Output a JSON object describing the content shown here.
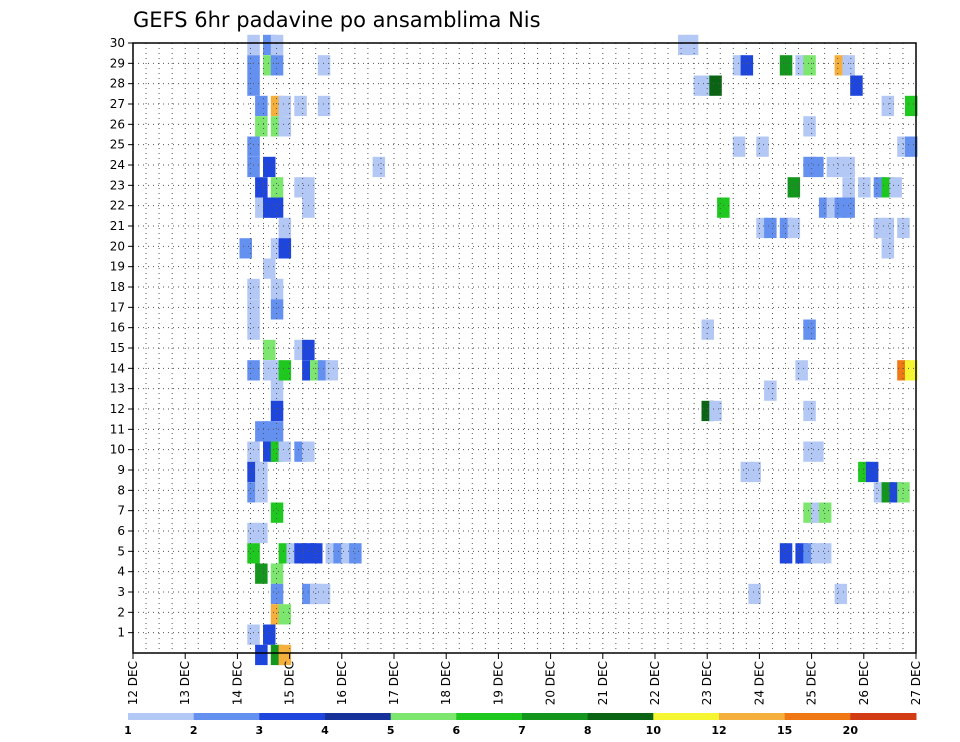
{
  "chart_data": {
    "type": "heatmap",
    "title": "GEFS 6hr padavine po ansamblima Nis",
    "xlabel": "",
    "ylabel": "",
    "x_ticks": [
      "12 DEC",
      "13 DEC",
      "14 DEC",
      "15 DEC",
      "16 DEC",
      "17 DEC",
      "18 DEC",
      "19 DEC",
      "20 DEC",
      "21 DEC",
      "22 DEC",
      "23 DEC",
      "24 DEC",
      "25 DEC",
      "26 DEC",
      "27 DEC"
    ],
    "y_ticks": [
      "1",
      "2",
      "3",
      "4",
      "5",
      "6",
      "7",
      "8",
      "9",
      "10",
      "11",
      "12",
      "13",
      "14",
      "15",
      "16",
      "17",
      "18",
      "19",
      "20",
      "21",
      "22",
      "23",
      "24",
      "25",
      "26",
      "27",
      "28",
      "29",
      "30"
    ],
    "xlim": [
      "12 DEC 00Z",
      "27 DEC 00Z"
    ],
    "ylim": [
      0,
      30
    ],
    "x_step_hours": 6,
    "grid": true,
    "colorbar": {
      "position": "bottom",
      "levels": [
        "1",
        "2",
        "3",
        "4",
        "5",
        "6",
        "7",
        "8",
        "10",
        "12",
        "15",
        "20"
      ],
      "colors": [
        "#b4c8f5",
        "#6491f0",
        "#1e46dc",
        "#16329a",
        "#7de66e",
        "#1ec81e",
        "#14961e",
        "#0a6414",
        "#f5f532",
        "#f5af3c",
        "#f07814",
        "#d23c14",
        "#a01e0a",
        "#6e0a0a"
      ]
    },
    "series_note": "cells: [member_row, time_step_index_from_12DEC00Z, precipitation_level_index]",
    "cells": [
      [
        30,
        14,
        0
      ],
      [
        30,
        16,
        1
      ],
      [
        30,
        17,
        0
      ],
      [
        30,
        69,
        0
      ],
      [
        30,
        70,
        0
      ],
      [
        29,
        14,
        1
      ],
      [
        29,
        16,
        4
      ],
      [
        29,
        17,
        1
      ],
      [
        29,
        23,
        0
      ],
      [
        29,
        76,
        0
      ],
      [
        29,
        77,
        2
      ],
      [
        29,
        82,
        6
      ],
      [
        29,
        84,
        0
      ],
      [
        29,
        85,
        4
      ],
      [
        29,
        89,
        9
      ],
      [
        29,
        90,
        0
      ],
      [
        28,
        14,
        1
      ],
      [
        28,
        71,
        0
      ],
      [
        28,
        72,
        0
      ],
      [
        28,
        73,
        7
      ],
      [
        28,
        91,
        2
      ],
      [
        27,
        15,
        1
      ],
      [
        27,
        17,
        9
      ],
      [
        27,
        18,
        0
      ],
      [
        27,
        20,
        0
      ],
      [
        27,
        23,
        0
      ],
      [
        27,
        95,
        0
      ],
      [
        27,
        98,
        5
      ],
      [
        26,
        15,
        4
      ],
      [
        26,
        17,
        4
      ],
      [
        26,
        18,
        0
      ],
      [
        26,
        85,
        0
      ],
      [
        25,
        14,
        1
      ],
      [
        25,
        76,
        0
      ],
      [
        25,
        79,
        0
      ],
      [
        25,
        97,
        0
      ],
      [
        25,
        98,
        1
      ],
      [
        24,
        14,
        1
      ],
      [
        24,
        16,
        2
      ],
      [
        24,
        30,
        0
      ],
      [
        24,
        85,
        1
      ],
      [
        24,
        86,
        1
      ],
      [
        24,
        88,
        0
      ],
      [
        24,
        89,
        0
      ],
      [
        24,
        90,
        0
      ],
      [
        23,
        15,
        2
      ],
      [
        23,
        17,
        4
      ],
      [
        23,
        20,
        0
      ],
      [
        23,
        21,
        0
      ],
      [
        23,
        83,
        6
      ],
      [
        23,
        90,
        0
      ],
      [
        23,
        92,
        0
      ],
      [
        23,
        94,
        1
      ],
      [
        23,
        95,
        5
      ],
      [
        23,
        96,
        0
      ],
      [
        22,
        15,
        0
      ],
      [
        22,
        16,
        2
      ],
      [
        22,
        17,
        2
      ],
      [
        22,
        21,
        0
      ],
      [
        22,
        74,
        5
      ],
      [
        22,
        87,
        1
      ],
      [
        22,
        88,
        0
      ],
      [
        22,
        89,
        1
      ],
      [
        22,
        90,
        1
      ],
      [
        21,
        18,
        0
      ],
      [
        21,
        79,
        0
      ],
      [
        21,
        80,
        1
      ],
      [
        21,
        82,
        1
      ],
      [
        21,
        83,
        0
      ],
      [
        21,
        94,
        0
      ],
      [
        21,
        95,
        0
      ],
      [
        21,
        97,
        0
      ],
      [
        20,
        13,
        1
      ],
      [
        20,
        17,
        0
      ],
      [
        20,
        18,
        2
      ],
      [
        20,
        95,
        0
      ],
      [
        19,
        16,
        0
      ],
      [
        18,
        14,
        0
      ],
      [
        18,
        17,
        0
      ],
      [
        17,
        14,
        0
      ],
      [
        17,
        17,
        1
      ],
      [
        16,
        14,
        0
      ],
      [
        16,
        72,
        0
      ],
      [
        16,
        85,
        1
      ],
      [
        15,
        16,
        4
      ],
      [
        15,
        20,
        0
      ],
      [
        15,
        21,
        2
      ],
      [
        14,
        14,
        1
      ],
      [
        14,
        16,
        0
      ],
      [
        14,
        17,
        0
      ],
      [
        14,
        18,
        5
      ],
      [
        14,
        21,
        2
      ],
      [
        14,
        22,
        4
      ],
      [
        14,
        23,
        1
      ],
      [
        14,
        24,
        0
      ],
      [
        14,
        84,
        0
      ],
      [
        14,
        97,
        10
      ],
      [
        14,
        98,
        8
      ],
      [
        13,
        17,
        0
      ],
      [
        13,
        80,
        0
      ],
      [
        12,
        17,
        2
      ],
      [
        12,
        72,
        7
      ],
      [
        12,
        73,
        0
      ],
      [
        12,
        85,
        0
      ],
      [
        11,
        15,
        1
      ],
      [
        11,
        16,
        1
      ],
      [
        11,
        17,
        1
      ],
      [
        10,
        14,
        0
      ],
      [
        10,
        16,
        2
      ],
      [
        10,
        17,
        5
      ],
      [
        10,
        18,
        0
      ],
      [
        10,
        20,
        1
      ],
      [
        10,
        21,
        0
      ],
      [
        10,
        85,
        0
      ],
      [
        10,
        86,
        0
      ],
      [
        9,
        14,
        2
      ],
      [
        9,
        15,
        0
      ],
      [
        9,
        77,
        0
      ],
      [
        9,
        78,
        0
      ],
      [
        9,
        92,
        5
      ],
      [
        9,
        93,
        2
      ],
      [
        8,
        14,
        1
      ],
      [
        8,
        15,
        0
      ],
      [
        8,
        94,
        0
      ],
      [
        8,
        95,
        6
      ],
      [
        8,
        96,
        2
      ],
      [
        8,
        97,
        4
      ],
      [
        7,
        17,
        5
      ],
      [
        7,
        85,
        4
      ],
      [
        7,
        86,
        0
      ],
      [
        7,
        87,
        4
      ],
      [
        6,
        14,
        0
      ],
      [
        6,
        15,
        0
      ],
      [
        5,
        14,
        5
      ],
      [
        5,
        18,
        5
      ],
      [
        5,
        19,
        0
      ],
      [
        5,
        20,
        2
      ],
      [
        5,
        21,
        2
      ],
      [
        5,
        22,
        2
      ],
      [
        5,
        24,
        0
      ],
      [
        5,
        25,
        1
      ],
      [
        5,
        26,
        0
      ],
      [
        5,
        27,
        1
      ],
      [
        5,
        82,
        2
      ],
      [
        5,
        84,
        2
      ],
      [
        5,
        85,
        1
      ],
      [
        5,
        86,
        0
      ],
      [
        5,
        87,
        0
      ],
      [
        4,
        15,
        6
      ],
      [
        4,
        17,
        4
      ],
      [
        3,
        17,
        1
      ],
      [
        3,
        21,
        1
      ],
      [
        3,
        22,
        0
      ],
      [
        3,
        23,
        0
      ],
      [
        3,
        78,
        0
      ],
      [
        3,
        89,
        0
      ],
      [
        2,
        17,
        9
      ],
      [
        2,
        18,
        4
      ],
      [
        1,
        14,
        0
      ],
      [
        1,
        16,
        2
      ],
      [
        0,
        15,
        2
      ],
      [
        0,
        17,
        6
      ],
      [
        0,
        18,
        9
      ]
    ]
  }
}
